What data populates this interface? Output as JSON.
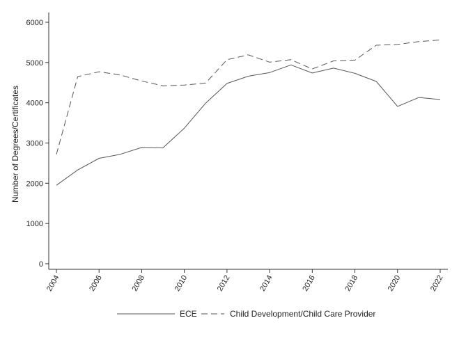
{
  "chart_data": {
    "type": "line",
    "title": "",
    "xlabel": "",
    "ylabel": "Number of Degrees/Certificates",
    "x": [
      2004,
      2005,
      2006,
      2007,
      2008,
      2009,
      2010,
      2011,
      2012,
      2013,
      2014,
      2015,
      2016,
      2017,
      2018,
      2019,
      2020,
      2021,
      2022
    ],
    "xticks": [
      "2004",
      "2006",
      "2008",
      "2010",
      "2012",
      "2014",
      "2016",
      "2018",
      "2020",
      "2022"
    ],
    "yticks": [
      "0",
      "1000",
      "2000",
      "3000",
      "4000",
      "5000",
      "6000"
    ],
    "ylim": [
      0,
      6000
    ],
    "grid": false,
    "legend_position": "bottom",
    "series": [
      {
        "name": "ECE",
        "style": "solid",
        "color": "#555555",
        "values": [
          1950,
          2330,
          2620,
          2720,
          2890,
          2880,
          3370,
          3990,
          4480,
          4660,
          4750,
          4940,
          4740,
          4860,
          4730,
          4530,
          3910,
          4130,
          4080
        ]
      },
      {
        "name": "Child Development/Child Care Provider",
        "style": "dashed",
        "color": "#555555",
        "values": [
          2720,
          4650,
          4770,
          4690,
          4540,
          4420,
          4440,
          4490,
          5070,
          5190,
          5010,
          5070,
          4840,
          5040,
          5060,
          5430,
          5450,
          5520,
          5560
        ]
      }
    ]
  }
}
